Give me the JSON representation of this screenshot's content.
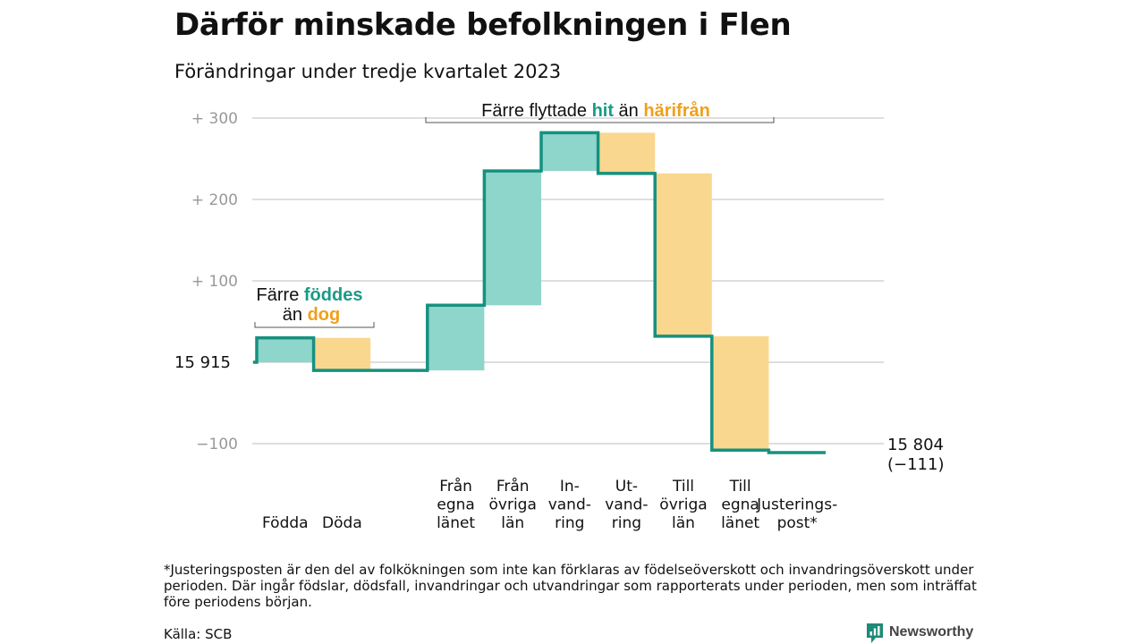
{
  "title": "Därför minskade befolkningen i Flen",
  "subtitle": "Förändringar under tredje kvartalet 2023",
  "footnote": "*Justeringsposten är den del av folkökningen som inte kan förklaras av födelseöverskott och invandringsöverskott under perioden. Där ingår födslar, dödsfall, invandringar och utvandringar som rapporterats under perioden, men som inträffat före periodens början.",
  "source": "Källa: SCB",
  "brand": "Newsworthy",
  "colors": {
    "increase": "#8ed5cc",
    "decrease": "#fad78e",
    "line": "#16917f",
    "teal_text": "#1a9a87",
    "orange_text": "#f0a01a",
    "grid": "#dedede",
    "tick": "#999999"
  },
  "chart_data": {
    "type": "waterfall",
    "base_value": 15915,
    "final_value": 15804,
    "start_label": "15  915",
    "end_label": [
      "15 804",
      "(−111)"
    ],
    "ylim": [
      -120,
      305
    ],
    "yticks": [
      {
        "value": 300,
        "label": "+  300"
      },
      {
        "value": 200,
        "label": "+  200"
      },
      {
        "value": 100,
        "label": "+  100"
      },
      {
        "value": -100,
        "label": "−100"
      }
    ],
    "steps": [
      {
        "label": [
          "Födda"
        ],
        "change": 30
      },
      {
        "label": [
          "Döda"
        ],
        "change": -40
      },
      {
        "label": [],
        "change": 0
      },
      {
        "label": [
          "Från",
          "egna",
          "länet"
        ],
        "change": 80
      },
      {
        "label": [
          "Från",
          "övriga",
          "län"
        ],
        "change": 165
      },
      {
        "label": [
          "In-",
          "vand-",
          "ring"
        ],
        "change": 47
      },
      {
        "label": [
          "Ut-",
          "vand-",
          "ring"
        ],
        "change": -50
      },
      {
        "label": [
          "Till",
          "övriga",
          "län"
        ],
        "change": -200
      },
      {
        "label": [
          "Till",
          "egna",
          "länet"
        ],
        "change": -140
      },
      {
        "label": [
          "Justerings-",
          "post*"
        ],
        "change": -3
      }
    ],
    "annotations": [
      {
        "parts": [
          {
            "text": "Färre ",
            "color": "dark"
          },
          {
            "text": "föddes",
            "color": "teal"
          }
        ]
      },
      {
        "parts": [
          {
            "text": "än ",
            "color": "dark"
          },
          {
            "text": "dog",
            "color": "orange"
          }
        ]
      },
      {
        "parts": [
          {
            "text": "Färre flyttade ",
            "color": "dark"
          },
          {
            "text": "hit",
            "color": "teal"
          },
          {
            "text": " än ",
            "color": "dark"
          },
          {
            "text": "härifrån",
            "color": "orange"
          }
        ]
      }
    ]
  }
}
